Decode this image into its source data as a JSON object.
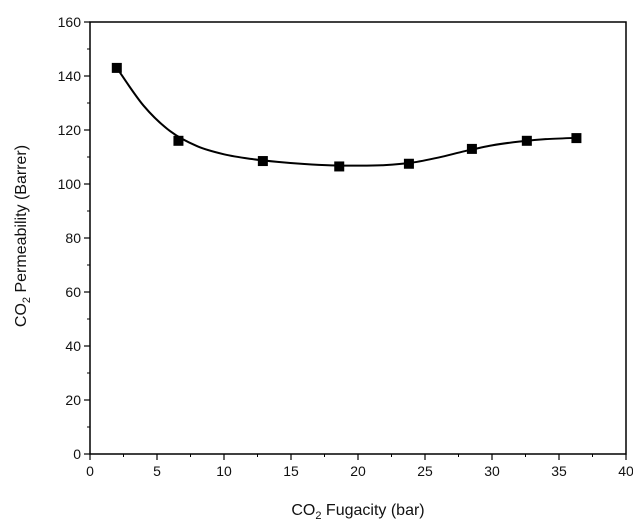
{
  "chart_data": {
    "type": "scatter",
    "xlabel": {
      "pre": "CO",
      "sub": "2",
      "post": " Fugacity (bar)"
    },
    "ylabel": {
      "pre": "CO",
      "sub": "2",
      "post": " Permeability (Barrer)"
    },
    "xlim": [
      0,
      40
    ],
    "ylim": [
      0,
      160
    ],
    "x_ticks": [
      0,
      5,
      10,
      15,
      20,
      25,
      30,
      35,
      40
    ],
    "y_ticks": [
      0,
      20,
      40,
      60,
      80,
      100,
      120,
      140,
      160
    ],
    "grid": false,
    "series": [
      {
        "marker": "square",
        "color": "#000000",
        "points": [
          {
            "x": 2.0,
            "y": 143
          },
          {
            "x": 6.6,
            "y": 116
          },
          {
            "x": 12.9,
            "y": 108.5
          },
          {
            "x": 18.6,
            "y": 106.5
          },
          {
            "x": 23.8,
            "y": 107.5
          },
          {
            "x": 28.5,
            "y": 113
          },
          {
            "x": 32.6,
            "y": 116
          },
          {
            "x": 36.3,
            "y": 117
          }
        ],
        "fit_curve": [
          {
            "x": 2.0,
            "y": 143
          },
          {
            "x": 4.0,
            "y": 129
          },
          {
            "x": 6.0,
            "y": 119.5
          },
          {
            "x": 8.0,
            "y": 114
          },
          {
            "x": 10.0,
            "y": 111
          },
          {
            "x": 12.0,
            "y": 109.3
          },
          {
            "x": 14.0,
            "y": 108.2
          },
          {
            "x": 16.0,
            "y": 107.4
          },
          {
            "x": 18.0,
            "y": 106.9
          },
          {
            "x": 20.0,
            "y": 106.8
          },
          {
            "x": 22.0,
            "y": 107
          },
          {
            "x": 24.0,
            "y": 107.9
          },
          {
            "x": 26.0,
            "y": 109.8
          },
          {
            "x": 28.0,
            "y": 112.2
          },
          {
            "x": 30.0,
            "y": 114.3
          },
          {
            "x": 32.0,
            "y": 115.7
          },
          {
            "x": 34.0,
            "y": 116.6
          },
          {
            "x": 36.3,
            "y": 117.1
          }
        ]
      }
    ]
  }
}
